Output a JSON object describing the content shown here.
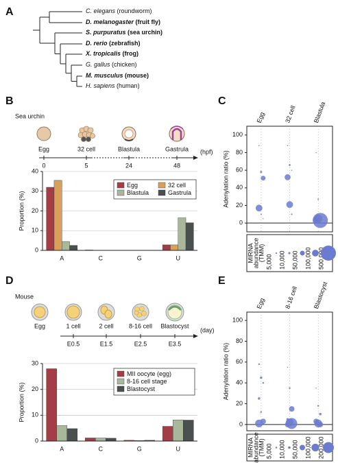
{
  "panel_labels": [
    "A",
    "B",
    "C",
    "D",
    "E"
  ],
  "tree": {
    "species": [
      {
        "name": "C. elegans",
        "common": "(roundworm)",
        "bold": false
      },
      {
        "name": "D. melanogaster",
        "common": "(fruit fly)",
        "bold": true
      },
      {
        "name": "S. purpuratus",
        "common": "(sea urchin)",
        "bold": true
      },
      {
        "name": "D. rerio",
        "common": "(zebrafish)",
        "bold": true
      },
      {
        "name": "X. tropicalis",
        "common": "(frog)",
        "bold": true
      },
      {
        "name": "G. gallus",
        "common": "(chicken)",
        "bold": false
      },
      {
        "name": "M. musculus",
        "common": "(mouse)",
        "bold": true
      },
      {
        "name": "H. sapiens",
        "common": "(human)",
        "bold": false
      }
    ]
  },
  "timelines": [
    {
      "title": "Sea urchin",
      "stages": [
        "Egg",
        "32 cell",
        "Blastula",
        "Gastrula"
      ],
      "times": [
        "0",
        "5",
        "24",
        "48"
      ],
      "unit": "(hpf)"
    },
    {
      "title": "Mouse",
      "stages": [
        "Egg",
        "1 cell",
        "2 cell",
        "8-16 cell",
        "Blastocyst"
      ],
      "times": [
        "E0.5",
        "E1.5",
        "E2.5",
        "E3.5"
      ],
      "unit": "(day)"
    }
  ],
  "chart_data": [
    {
      "type": "bar",
      "y_label": "Proportion (%)",
      "categories": [
        "A",
        "C",
        "G",
        "U"
      ],
      "ylim": [
        0,
        40
      ],
      "yticks": [
        0,
        10,
        20,
        30,
        40
      ],
      "grid": true,
      "legend": "upper right",
      "legend_columns": 2,
      "series": [
        {
          "name": "Egg",
          "color": "#a33e46",
          "values": [
            32,
            0.2,
            0.1,
            2.8
          ]
        },
        {
          "name": "32 cell",
          "color": "#d9a05a",
          "values": [
            35.5,
            0.1,
            0.1,
            2.8
          ]
        },
        {
          "name": "Blastula",
          "color": "#a9b89a",
          "values": [
            4.5,
            0.1,
            0.1,
            16.5
          ]
        },
        {
          "name": "Gastrula",
          "color": "#4a4f4f",
          "values": [
            2.5,
            0.1,
            0.1,
            14
          ]
        }
      ]
    },
    {
      "type": "bubble",
      "y_label": "Adenylation ratio (%)",
      "ylim": [
        -10,
        110
      ],
      "yticks": [
        0,
        20,
        40,
        60,
        80,
        100
      ],
      "color": "#6b7bcf",
      "columns": [
        {
          "name": "Egg",
          "values": [
            88,
            58,
            51,
            17,
            10,
            5
          ],
          "sizes": [
            2000,
            10000,
            50000,
            100000,
            5000,
            2000
          ]
        },
        {
          "name": "32 cell",
          "values": [
            88,
            66,
            60,
            52,
            21,
            10
          ],
          "sizes": [
            3000,
            8000,
            2000,
            80000,
            100000,
            5000
          ]
        },
        {
          "name": "Blastula",
          "values": [
            80,
            27,
            3,
            4,
            5
          ],
          "sizes": [
            500,
            5000,
            500000,
            100000,
            150000
          ]
        }
      ],
      "size_legend": {
        "title": [
          "MIRNA",
          "abundance",
          "(TMM)"
        ],
        "sizes": [
          {
            "value": 5000,
            "label": "5,000"
          },
          {
            "value": 10000,
            "label": "10,000"
          },
          {
            "value": 50000,
            "label": "50,000"
          },
          {
            "value": 100000,
            "label": "100,000"
          },
          {
            "value": 500000,
            "label": "500,000"
          }
        ]
      }
    },
    {
      "type": "bar",
      "y_label": "Proportion (%)",
      "categories": [
        "A",
        "C",
        "G",
        "U"
      ],
      "ylim": [
        0,
        30
      ],
      "yticks": [
        0,
        10,
        20,
        30
      ],
      "grid": true,
      "legend": "upper right",
      "legend_columns": 1,
      "series": [
        {
          "name": "MII oocyte (egg)",
          "color": "#a33e46",
          "values": [
            28,
            1.2,
            0.3,
            5.7
          ]
        },
        {
          "name": "8-16 cell stage",
          "color": "#a9b89a",
          "values": [
            6,
            1.2,
            0.2,
            8.2
          ]
        },
        {
          "name": "Blastocyst",
          "color": "#4a4f4f",
          "values": [
            4.8,
            1.1,
            0.3,
            8.1
          ]
        }
      ]
    },
    {
      "type": "bubble",
      "y_label": "Adenylation ratio (%)",
      "ylim": [
        -6,
        108
      ],
      "yticks": [
        0,
        20,
        40,
        60,
        80,
        100
      ],
      "color": "#6b7bcf",
      "columns": [
        {
          "name": "Egg",
          "values": [
            58,
            45,
            40,
            25,
            12,
            3,
            1
          ],
          "sizes": [
            5000,
            10000,
            5000,
            10000,
            5000,
            50000,
            100000
          ]
        },
        {
          "name": "8-16 cell",
          "values": [
            55,
            35,
            15,
            5,
            2,
            1,
            0
          ],
          "sizes": [
            2000,
            5000,
            50000,
            10000,
            100000,
            200000,
            50000
          ]
        },
        {
          "name": "Blastocyst",
          "values": [
            35,
            18,
            10,
            3,
            1,
            0
          ],
          "sizes": [
            2000,
            5000,
            10000,
            50000,
            100000,
            50000
          ]
        }
      ],
      "size_legend": {
        "title": [
          "MIRNA",
          "abundance",
          "(TMM)"
        ],
        "sizes": [
          {
            "value": 5000,
            "label": "5,000"
          },
          {
            "value": 10000,
            "label": "10,000"
          },
          {
            "value": 50000,
            "label": "50,000"
          },
          {
            "value": 100000,
            "label": "100,000"
          },
          {
            "value": 200000,
            "label": "200,000"
          }
        ]
      }
    }
  ]
}
